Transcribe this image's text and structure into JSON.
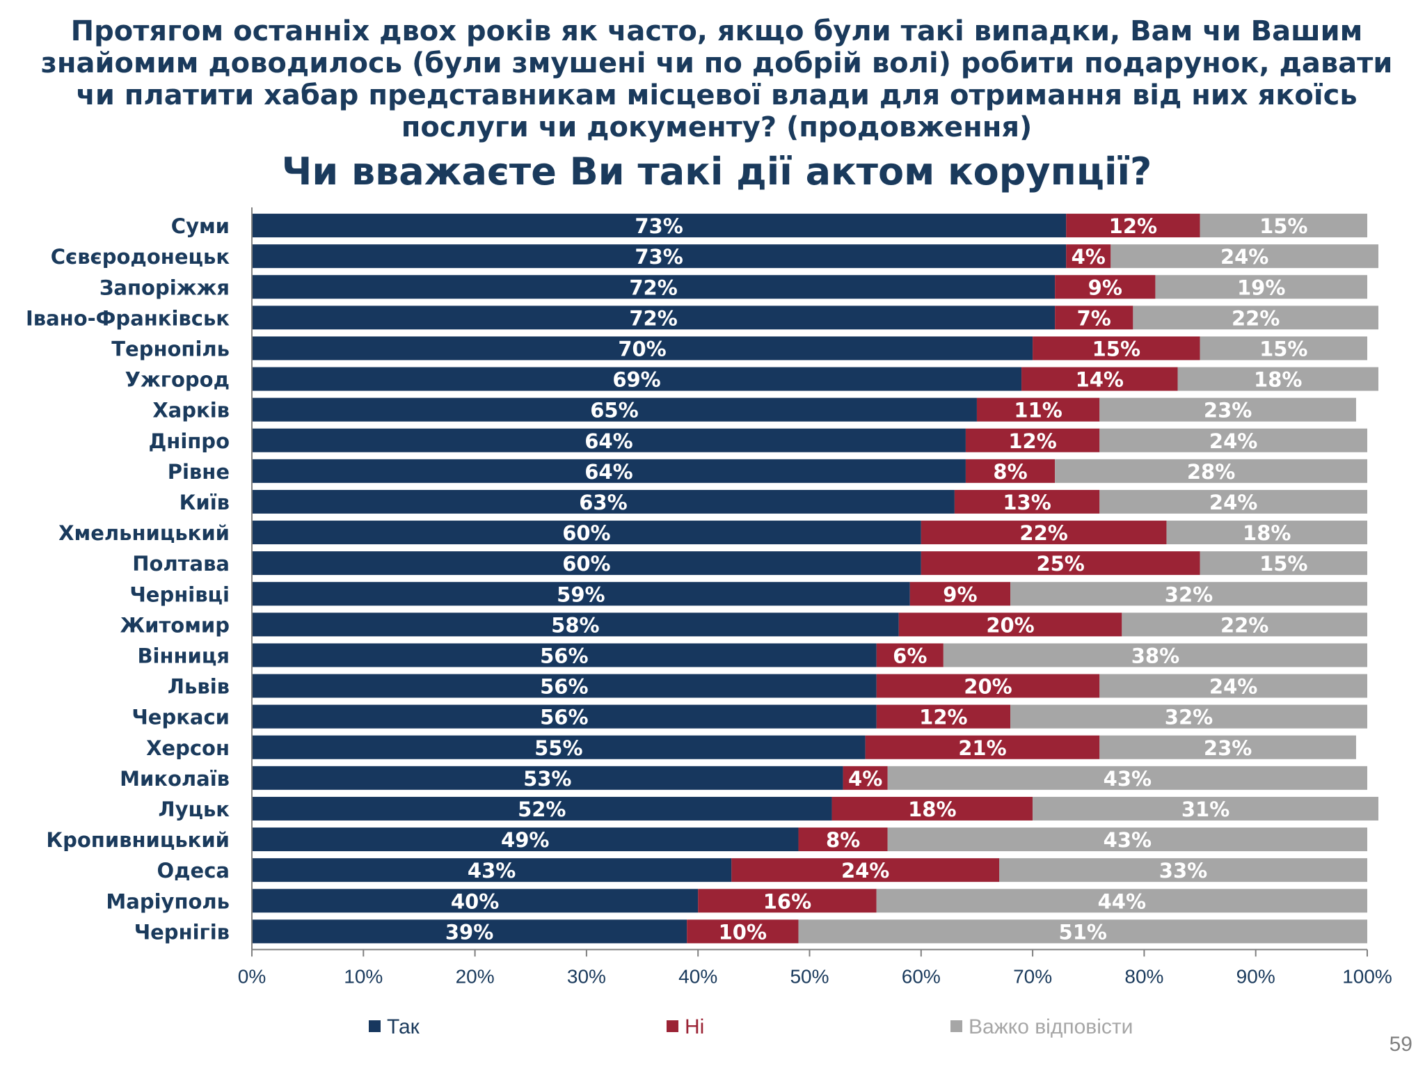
{
  "page": {
    "number": "59"
  },
  "chart_data": {
    "type": "bar",
    "orientation": "horizontal",
    "stacked": true,
    "title": "Протягом останніх двох років як часто, якщо були такі випадки, Вам чи Вашим знайомим доводилось (були змушені чи по добрій волі) робити подарунок, давати чи платити хабар представникам місцевої влади для отримання від них якоїсь послуги чи документу? (продовження)",
    "subtitle": "Чи вважаєте Ви такі дії актом корупції?",
    "xlim": [
      0,
      100
    ],
    "x_ticks": [
      "0%",
      "10%",
      "20%",
      "30%",
      "40%",
      "50%",
      "60%",
      "70%",
      "80%",
      "90%",
      "100%"
    ],
    "grid": false,
    "legend_position": "bottom",
    "categories": [
      "Суми",
      "Сєвєродонецьк",
      "Запоріжжя",
      "Івано-Франківськ",
      "Тернопіль",
      "Ужгород",
      "Харків",
      "Дніпро",
      "Рівне",
      "Київ",
      "Хмельницький",
      "Полтава",
      "Чернівці",
      "Житомир",
      "Вінниця",
      "Львів",
      "Черкаси",
      "Херсон",
      "Миколаїв",
      "Луцьк",
      "Кропивницький",
      "Одеса",
      "Маріуполь",
      "Чернігів"
    ],
    "series": [
      {
        "name": "Так",
        "color": "#17375e",
        "values": [
          73,
          73,
          72,
          72,
          70,
          69,
          65,
          64,
          64,
          63,
          60,
          60,
          59,
          58,
          56,
          56,
          56,
          55,
          53,
          52,
          49,
          43,
          40,
          39
        ]
      },
      {
        "name": "Ні",
        "color": "#9b2335",
        "values": [
          12,
          4,
          9,
          7,
          15,
          14,
          11,
          12,
          8,
          13,
          22,
          25,
          9,
          20,
          6,
          20,
          12,
          21,
          4,
          18,
          8,
          24,
          16,
          10
        ]
      },
      {
        "name": "Важко відповісти",
        "color": "#a6a6a6",
        "values": [
          15,
          24,
          19,
          22,
          15,
          18,
          23,
          24,
          28,
          24,
          18,
          15,
          32,
          22,
          38,
          24,
          32,
          23,
          43,
          31,
          43,
          33,
          44,
          51
        ]
      }
    ]
  }
}
